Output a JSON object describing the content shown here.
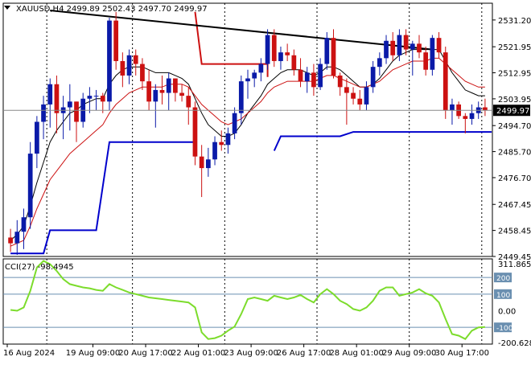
{
  "window": {
    "symbol_line": "XAUUSD,H4  2499.89 2502.43 2497.70 2499.97",
    "indicator_label": "CCI(27) -98.4945"
  },
  "colors": {
    "background": "#ffffff",
    "frame": "#000000",
    "bull_candle": "#0a1aa8",
    "bear_candle": "#cc1111",
    "bull_wick": "#0a1aa8",
    "bear_wick": "#cc1111",
    "ma_fast": "#cc1111",
    "ma_slow": "#000000",
    "trendline": "#000000",
    "resistance_step": "#cc1111",
    "support_step": "#0000cc",
    "cci_line": "#7cdc2c",
    "cci_level": "#6a8fb0",
    "grid": "#000000",
    "price_tag_bg": "#000000",
    "price_tag_fg": "#ffffff"
  },
  "chart_data": [
    {
      "type": "candlestick",
      "title": "XAUUSD,H4  2499.89 2502.43 2497.70 2499.97",
      "ylim": [
        2449.45,
        2537.0
      ],
      "y_ticks": [
        "2531.20",
        "2521.95",
        "2512.95",
        "2503.95",
        "2494.70",
        "2485.70",
        "2476.70",
        "2467.45",
        "2458.45",
        "2449.45"
      ],
      "y_tick_values": [
        2531.2,
        2521.95,
        2512.95,
        2503.95,
        2494.7,
        2485.7,
        2476.7,
        2467.45,
        2458.45,
        2449.45
      ],
      "current_price": "2499.97",
      "current_price_value": 2499.97,
      "x_ticks": [
        "16 Aug 2024",
        "19 Aug 09:00",
        "20 Aug 17:00",
        "22 Aug 01:00",
        "23 Aug 09:00",
        "26 Aug 17:00",
        "28 Aug 01:00",
        "29 Aug 09:00",
        "30 Aug 17:00"
      ],
      "x_tick_bar": [
        0,
        13,
        21,
        29,
        37,
        45,
        53,
        61,
        69
      ],
      "separator_bars": [
        6,
        19,
        33,
        47,
        61,
        72
      ],
      "ohlc": [
        [
          2456,
          2459,
          2451,
          2454
        ],
        [
          2454,
          2462,
          2450,
          2458
        ],
        [
          2458,
          2466,
          2452,
          2463
        ],
        [
          2463,
          2489,
          2459,
          2485
        ],
        [
          2485,
          2498,
          2480,
          2496
        ],
        [
          2496,
          2505,
          2490,
          2502
        ],
        [
          2502,
          2511,
          2494,
          2509
        ],
        [
          2509,
          2512,
          2492,
          2499
        ],
        [
          2499,
          2505,
          2490,
          2501
        ],
        [
          2501,
          2509,
          2493,
          2503
        ],
        [
          2503,
          2503,
          2489,
          2496
        ],
        [
          2496,
          2506,
          2494,
          2504
        ],
        [
          2504,
          2508,
          2499,
          2505
        ],
        [
          2505,
          2507,
          2500,
          2505
        ],
        [
          2505,
          2506,
          2499,
          2503
        ],
        [
          2503,
          2532,
          2500,
          2531
        ],
        [
          2531,
          2534,
          2514,
          2517
        ],
        [
          2517,
          2520,
          2508,
          2512
        ],
        [
          2512,
          2521,
          2509,
          2519
        ],
        [
          2519,
          2521,
          2512,
          2516
        ],
        [
          2516,
          2518,
          2507,
          2510
        ],
        [
          2510,
          2514,
          2500,
          2503
        ],
        [
          2503,
          2509,
          2494,
          2507
        ],
        [
          2507,
          2512,
          2502,
          2506
        ],
        [
          2506,
          2513,
          2500,
          2511
        ],
        [
          2511,
          2511,
          2503,
          2506
        ],
        [
          2506,
          2509,
          2503,
          2505
        ],
        [
          2505,
          2508,
          2495,
          2501
        ],
        [
          2501,
          2503,
          2481,
          2484
        ],
        [
          2484,
          2488,
          2470,
          2480
        ],
        [
          2480,
          2487,
          2477,
          2483
        ],
        [
          2483,
          2491,
          2481,
          2489
        ],
        [
          2489,
          2493,
          2486,
          2488
        ],
        [
          2488,
          2494,
          2485,
          2492
        ],
        [
          2492,
          2501,
          2490,
          2499
        ],
        [
          2499,
          2512,
          2495,
          2510
        ],
        [
          2510,
          2514,
          2504,
          2511
        ],
        [
          2511,
          2514,
          2508,
          2513
        ],
        [
          2513,
          2518,
          2510,
          2516
        ],
        [
          2516,
          2528,
          2514,
          2526
        ],
        [
          2526,
          2528,
          2515,
          2517
        ],
        [
          2517,
          2522,
          2514,
          2520
        ],
        [
          2520,
          2523,
          2517,
          2519
        ],
        [
          2519,
          2521,
          2512,
          2514
        ],
        [
          2514,
          2518,
          2508,
          2510
        ],
        [
          2510,
          2515,
          2506,
          2513
        ],
        [
          2513,
          2516,
          2505,
          2508
        ],
        [
          2508,
          2518,
          2507,
          2516
        ],
        [
          2516,
          2527,
          2514,
          2525
        ],
        [
          2525,
          2528,
          2511,
          2512
        ],
        [
          2512,
          2513,
          2505,
          2508
        ],
        [
          2508,
          2511,
          2495,
          2506
        ],
        [
          2506,
          2508,
          2502,
          2504
        ],
        [
          2504,
          2507,
          2500,
          2502
        ],
        [
          2502,
          2510,
          2500,
          2508
        ],
        [
          2508,
          2517,
          2506,
          2515
        ],
        [
          2515,
          2520,
          2512,
          2518
        ],
        [
          2518,
          2526,
          2516,
          2524
        ],
        [
          2524,
          2527,
          2517,
          2519
        ],
        [
          2519,
          2528,
          2517,
          2526
        ],
        [
          2526,
          2528,
          2519,
          2521
        ],
        [
          2521,
          2524,
          2512,
          2523
        ],
        [
          2523,
          2526,
          2518,
          2520
        ],
        [
          2520,
          2522,
          2512,
          2514
        ],
        [
          2514,
          2526,
          2512,
          2525
        ],
        [
          2525,
          2527,
          2518,
          2520
        ],
        [
          2520,
          2522,
          2497,
          2500
        ],
        [
          2500,
          2504,
          2495,
          2502
        ],
        [
          2502,
          2503,
          2497,
          2498
        ],
        [
          2498,
          2499,
          2492,
          2497
        ],
        [
          2497,
          2502,
          2495,
          2499
        ],
        [
          2499,
          2503,
          2497,
          2501
        ],
        [
          2501,
          2504,
          2498,
          2500
        ]
      ],
      "ma_fast": [
        2453,
        2454,
        2455,
        2460,
        2466,
        2471,
        2476,
        2479,
        2482,
        2485,
        2487,
        2489,
        2491,
        2493,
        2495,
        2499,
        2502,
        2504,
        2506,
        2507,
        2508,
        2508,
        2508,
        2508,
        2509,
        2509,
        2509,
        2508,
        2505,
        2502,
        2500,
        2498,
        2496,
        2495,
        2496,
        2497,
        2499,
        2501,
        2503,
        2506,
        2508,
        2509,
        2510,
        2510,
        2510,
        2510,
        2510,
        2511,
        2512,
        2512,
        2511,
        2510,
        2509,
        2508,
        2508,
        2509,
        2510,
        2512,
        2514,
        2515,
        2516,
        2517,
        2517,
        2517,
        2518,
        2518,
        2516,
        2514,
        2512,
        2510,
        2509,
        2508,
        2508
      ],
      "ma_slow": [
        2455,
        2457,
        2460,
        2467,
        2475,
        2482,
        2489,
        2493,
        2496,
        2499,
        2500,
        2502,
        2503,
        2504,
        2504,
        2509,
        2512,
        2514,
        2515,
        2515,
        2515,
        2514,
        2513,
        2513,
        2513,
        2512,
        2511,
        2509,
        2504,
        2499,
        2495,
        2493,
        2491,
        2491,
        2492,
        2495,
        2499,
        2502,
        2505,
        2509,
        2511,
        2513,
        2514,
        2514,
        2514,
        2513,
        2512,
        2513,
        2515,
        2515,
        2514,
        2512,
        2510,
        2508,
        2508,
        2509,
        2511,
        2514,
        2517,
        2519,
        2520,
        2521,
        2521,
        2521,
        2521,
        2521,
        2517,
        2513,
        2510,
        2507,
        2506,
        2505,
        2505
      ],
      "trendline": {
        "from": [
          6,
          2534.5
        ],
        "to": [
          64,
          2521.0
        ]
      },
      "resistance_step": [
        [
          28,
          2534.0
        ],
        [
          29,
          2516.0
        ],
        [
          39,
          2516.0
        ],
        [
          39,
          2511.5
        ]
      ],
      "support_step": [
        [
          0,
          2450.5
        ],
        [
          5,
          2450.5
        ],
        [
          6,
          2458.5
        ],
        [
          13,
          2458.5
        ],
        [
          15,
          2489.0
        ],
        [
          28,
          2489.0
        ]
      ],
      "support_step_2": [
        [
          40,
          2486.0
        ],
        [
          41,
          2491.0
        ],
        [
          50,
          2491.0
        ],
        [
          52,
          2492.5
        ],
        [
          73,
          2492.5
        ]
      ]
    },
    {
      "type": "line",
      "title": "CCI(27) -98.4945",
      "ylim": [
        -200.6281,
        311.8653
      ],
      "y_ticks": [
        "311.8653",
        "200",
        "100",
        "0.00",
        "-100",
        "-200.6281"
      ],
      "y_tick_values": [
        311.8653,
        200,
        100,
        0,
        -100,
        -200.6281
      ],
      "levels": [
        200,
        100,
        -100
      ],
      "values": [
        5,
        0,
        20,
        120,
        260,
        300,
        280,
        240,
        190,
        160,
        150,
        140,
        135,
        125,
        120,
        160,
        140,
        125,
        110,
        100,
        90,
        80,
        75,
        70,
        65,
        60,
        55,
        50,
        20,
        -130,
        -170,
        -165,
        -150,
        -120,
        -95,
        -20,
        70,
        80,
        70,
        60,
        90,
        80,
        70,
        80,
        95,
        70,
        50,
        100,
        130,
        100,
        60,
        40,
        10,
        0,
        20,
        60,
        120,
        140,
        140,
        90,
        100,
        110,
        130,
        105,
        90,
        50,
        -50,
        -140,
        -150,
        -170,
        -120,
        -100,
        -98
      ]
    }
  ]
}
